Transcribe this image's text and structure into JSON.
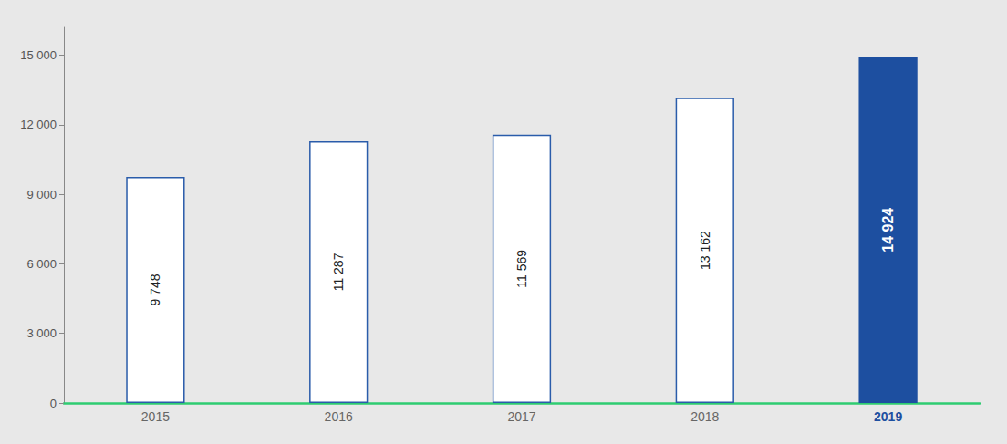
{
  "chart_data": {
    "type": "bar",
    "categories": [
      "2015",
      "2016",
      "2017",
      "2018",
      "2019"
    ],
    "values": [
      9748,
      11287,
      11569,
      13162,
      14924
    ],
    "value_labels": [
      "9 748",
      "11 287",
      "11 569",
      "13 162",
      "14 924"
    ],
    "colors": [
      "white",
      "white",
      "white",
      "white",
      "#1d4fa0"
    ],
    "ylim": [
      0,
      16200
    ],
    "yticks": [
      0,
      {
        "value": 3000,
        "label": "3 000"
      },
      {
        "value": 6000,
        "label": "6 000"
      },
      {
        "value": 9000,
        "label": "9 000"
      },
      {
        "value": 12000,
        "label": "12 000"
      },
      {
        "value": 15000,
        "label": "15 000"
      }
    ],
    "grid": false,
    "data_labels": true
  }
}
